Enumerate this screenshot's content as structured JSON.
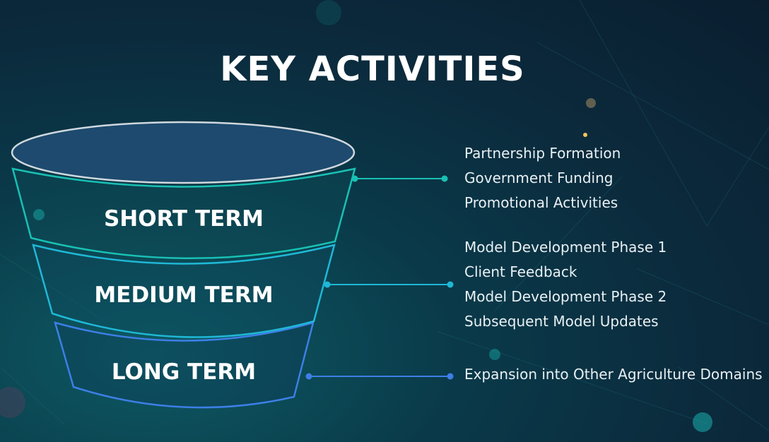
{
  "title": "KEY ACTIVITIES",
  "tiers": [
    {
      "label": "SHORT TERM",
      "color": "#19c0b3",
      "items": [
        "Partnership Formation",
        "Government Funding",
        "Promotional Activities"
      ]
    },
    {
      "label": "MEDIUM TERM",
      "color": "#1fb8d6",
      "items": [
        "Model Development Phase 1",
        "Client Feedback",
        "Model Development Phase 2",
        "Subsequent Model Updates"
      ]
    },
    {
      "label": "LONG TERM",
      "color": "#3d7fe6",
      "items": [
        "Expansion into Other Agriculture Domains"
      ]
    }
  ]
}
